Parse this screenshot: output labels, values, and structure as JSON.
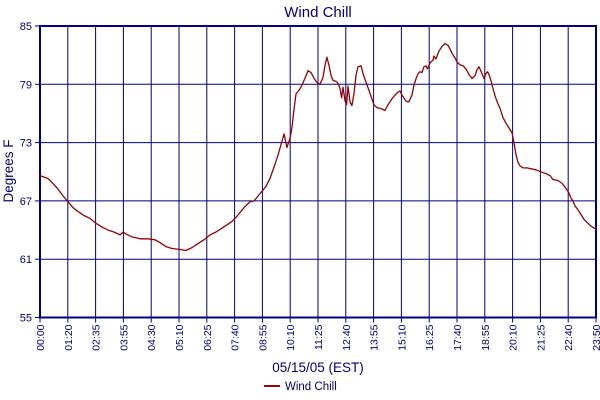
{
  "title": "Wind Chill",
  "colors": {
    "grid": "#000080",
    "text": "#000080",
    "line": "#990000",
    "background": "#ffffff"
  },
  "legend": {
    "label": "Wind Chill",
    "marker_color": "#990000",
    "position": "bottom"
  },
  "chart_data": {
    "type": "line",
    "title": "Wind Chill",
    "xlabel": "05/15/05 (EST)",
    "ylabel": "Degrees F",
    "ylim": [
      55,
      85
    ],
    "y_ticks": [
      55,
      61,
      67,
      73,
      79,
      85
    ],
    "grid": true,
    "legend_position": "bottom",
    "x_tick_labels": [
      "00:00",
      "01:20",
      "02:35",
      "03:55",
      "04:30",
      "05:10",
      "06:25",
      "07:40",
      "08:55",
      "10:10",
      "11:25",
      "12:40",
      "13:55",
      "15:10",
      "16:25",
      "17:40",
      "18:55",
      "20:10",
      "21:25",
      "22:40",
      "23:50"
    ],
    "series": [
      {
        "name": "Wind Chill",
        "color": "#990000",
        "x_unit": "tick-position (0 = 00:00 label, 20 = 23:50 label)",
        "y_unit": "Degrees F",
        "points": [
          [
            0,
            69.6
          ],
          [
            0.29,
            69.3
          ],
          [
            0.5,
            68.7
          ],
          [
            0.65,
            68.2
          ],
          [
            0.83,
            67.5
          ],
          [
            1.01,
            66.9
          ],
          [
            1.19,
            66.3
          ],
          [
            1.37,
            65.9
          ],
          [
            1.58,
            65.5
          ],
          [
            1.8,
            65.2
          ],
          [
            2.01,
            64.7
          ],
          [
            2.23,
            64.3
          ],
          [
            2.45,
            64
          ],
          [
            2.66,
            63.8
          ],
          [
            2.88,
            63.5
          ],
          [
            2.99,
            63.8
          ],
          [
            3.09,
            63.6
          ],
          [
            3.31,
            63.3
          ],
          [
            3.6,
            63.1
          ],
          [
            3.88,
            63.1
          ],
          [
            4.14,
            63
          ],
          [
            4.32,
            62.7
          ],
          [
            4.53,
            62.3
          ],
          [
            4.75,
            62.1
          ],
          [
            5.04,
            62
          ],
          [
            5.25,
            61.9
          ],
          [
            5.47,
            62.2
          ],
          [
            5.68,
            62.6
          ],
          [
            5.9,
            63
          ],
          [
            6.12,
            63.5
          ],
          [
            6.33,
            63.8
          ],
          [
            6.55,
            64.2
          ],
          [
            6.76,
            64.6
          ],
          [
            6.91,
            64.9
          ],
          [
            7.05,
            65.3
          ],
          [
            7.19,
            65.8
          ],
          [
            7.37,
            66.4
          ],
          [
            7.55,
            66.9
          ],
          [
            7.7,
            67
          ],
          [
            7.84,
            67.5
          ],
          [
            7.99,
            68
          ],
          [
            8.13,
            68.5
          ],
          [
            8.27,
            69.3
          ],
          [
            8.42,
            70.5
          ],
          [
            8.56,
            71.7
          ],
          [
            8.67,
            72.8
          ],
          [
            8.78,
            73.9
          ],
          [
            8.88,
            72.5
          ],
          [
            8.99,
            73.4
          ],
          [
            9.06,
            74.5
          ],
          [
            9.14,
            76.5
          ],
          [
            9.21,
            78
          ],
          [
            9.32,
            78.4
          ],
          [
            9.42,
            78.9
          ],
          [
            9.53,
            79.6
          ],
          [
            9.64,
            80.4
          ],
          [
            9.75,
            80.2
          ],
          [
            9.86,
            79.6
          ],
          [
            9.96,
            79.2
          ],
          [
            10.07,
            79
          ],
          [
            10.18,
            79.7
          ],
          [
            10.25,
            80.9
          ],
          [
            10.32,
            81.8
          ],
          [
            10.4,
            80.9
          ],
          [
            10.47,
            79.9
          ],
          [
            10.54,
            79.4
          ],
          [
            10.65,
            79.3
          ],
          [
            10.72,
            79.1
          ],
          [
            10.79,
            78.6
          ],
          [
            10.85,
            77.6
          ],
          [
            10.9,
            78.7
          ],
          [
            10.97,
            77.3
          ],
          [
            11.03,
            76.9
          ],
          [
            11.08,
            78.8
          ],
          [
            11.15,
            77.2
          ],
          [
            11.22,
            76.8
          ],
          [
            11.29,
            78
          ],
          [
            11.37,
            80
          ],
          [
            11.44,
            80.8
          ],
          [
            11.55,
            80.9
          ],
          [
            11.62,
            80.1
          ],
          [
            11.73,
            79.2
          ],
          [
            11.83,
            78.4
          ],
          [
            11.94,
            77.5
          ],
          [
            12.01,
            76.9
          ],
          [
            12.12,
            76.6
          ],
          [
            12.27,
            76.5
          ],
          [
            12.41,
            76.3
          ],
          [
            12.52,
            76.9
          ],
          [
            12.66,
            77.5
          ],
          [
            12.77,
            77.9
          ],
          [
            12.88,
            78.2
          ],
          [
            12.95,
            78.3
          ],
          [
            13.02,
            77.9
          ],
          [
            13.13,
            77.4
          ],
          [
            13.2,
            77.2
          ],
          [
            13.27,
            77.2
          ],
          [
            13.38,
            77.9
          ],
          [
            13.45,
            78.9
          ],
          [
            13.53,
            79.6
          ],
          [
            13.6,
            80.1
          ],
          [
            13.67,
            80.3
          ],
          [
            13.74,
            80.2
          ],
          [
            13.81,
            80.8
          ],
          [
            13.88,
            80.9
          ],
          [
            13.94,
            80.6
          ],
          [
            14.03,
            81.2
          ],
          [
            14.14,
            81.5
          ],
          [
            14.17,
            81.9
          ],
          [
            14.24,
            81.6
          ],
          [
            14.35,
            82.4
          ],
          [
            14.46,
            82.9
          ],
          [
            14.57,
            83.2
          ],
          [
            14.68,
            83
          ],
          [
            14.75,
            82.6
          ],
          [
            14.82,
            82.2
          ],
          [
            14.93,
            81.7
          ],
          [
            15,
            81.3
          ],
          [
            15.11,
            81
          ],
          [
            15.22,
            80.9
          ],
          [
            15.32,
            80.6
          ],
          [
            15.43,
            80
          ],
          [
            15.54,
            79.6
          ],
          [
            15.65,
            79.9
          ],
          [
            15.72,
            80.5
          ],
          [
            15.79,
            80.8
          ],
          [
            15.9,
            80.1
          ],
          [
            15.97,
            79.6
          ],
          [
            16.04,
            80.1
          ],
          [
            16.1,
            80.3
          ],
          [
            16.15,
            80
          ],
          [
            16.22,
            79.4
          ],
          [
            16.29,
            78.6
          ],
          [
            16.37,
            77.8
          ],
          [
            16.47,
            77
          ],
          [
            16.55,
            76.5
          ],
          [
            16.65,
            75.6
          ],
          [
            16.76,
            75
          ],
          [
            16.87,
            74.5
          ],
          [
            16.98,
            74
          ],
          [
            17.05,
            73
          ],
          [
            17.12,
            71.8
          ],
          [
            17.19,
            71
          ],
          [
            17.27,
            70.6
          ],
          [
            17.37,
            70.4
          ],
          [
            17.52,
            70.4
          ],
          [
            17.66,
            70.3
          ],
          [
            17.84,
            70.2
          ],
          [
            18.02,
            70
          ],
          [
            18.2,
            69.8
          ],
          [
            18.35,
            69.6
          ],
          [
            18.45,
            69.2
          ],
          [
            18.63,
            69.1
          ],
          [
            18.78,
            68.8
          ],
          [
            18.92,
            68.3
          ],
          [
            19.03,
            67.8
          ],
          [
            19.1,
            67.3
          ],
          [
            19.17,
            67
          ],
          [
            19.24,
            66.5
          ],
          [
            19.35,
            66.1
          ],
          [
            19.46,
            65.6
          ],
          [
            19.57,
            65.1
          ],
          [
            19.71,
            64.7
          ],
          [
            19.82,
            64.4
          ],
          [
            19.93,
            64.2
          ],
          [
            20,
            64.1
          ]
        ]
      }
    ]
  }
}
